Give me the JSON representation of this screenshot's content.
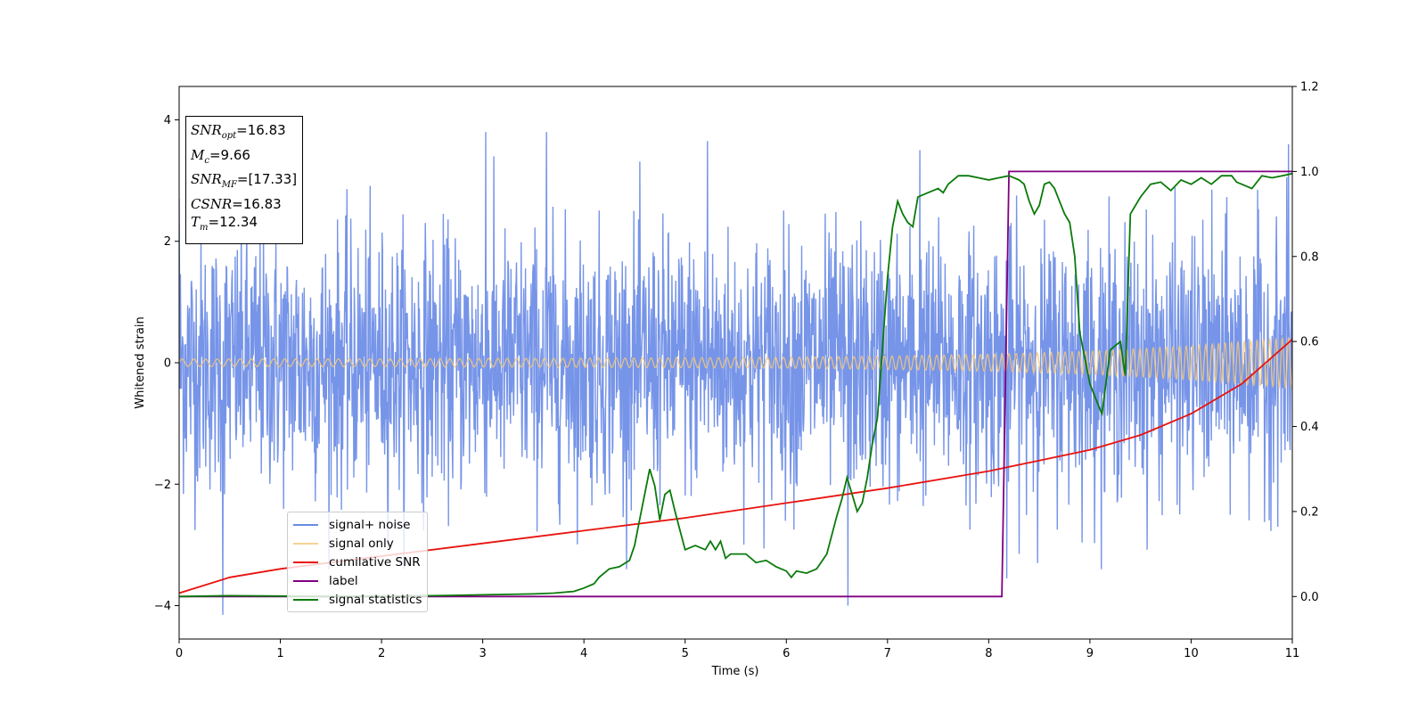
{
  "chart_data": {
    "type": "line",
    "title": "",
    "xlabel": "Time (s)",
    "ylabel": "Whitened strain",
    "xlim": [
      0,
      11
    ],
    "ylim": [
      -4.55,
      4.55
    ],
    "y2lim": [
      -0.1,
      1.2
    ],
    "xticks": [
      "0",
      "1",
      "2",
      "3",
      "4",
      "5",
      "6",
      "7",
      "8",
      "9",
      "10",
      "11"
    ],
    "yticks_left": [
      "−4",
      "−2",
      "0",
      "2",
      "4"
    ],
    "yticks_right": [
      "0.0",
      "0.2",
      "0.4",
      "0.6",
      "0.8",
      "1.0",
      "1.2"
    ],
    "grid": false,
    "legend_position": "lower-left",
    "series": [
      {
        "name": "signal+ noise",
        "color": "#6a8be6",
        "axis": "left",
        "note_style": "noise around zero, std about 1, peaks about ±3.8",
        "x": [
          0,
          0.43,
          3.03,
          3.63,
          5.22,
          6.61,
          7.32,
          8.18,
          10.96
        ],
        "values": [
          2.7,
          -4.15,
          3.8,
          3.8,
          3.65,
          -4.0,
          3.5,
          -3.55,
          3.6
        ]
      },
      {
        "name": "signal only",
        "color": "#f5c87a",
        "axis": "left",
        "envelope_x": [
          0,
          2,
          4,
          6,
          7,
          8,
          9,
          10,
          11
        ],
        "envelope_amplitude": [
          0.06,
          0.065,
          0.075,
          0.09,
          0.11,
          0.14,
          0.19,
          0.28,
          0.42
        ]
      },
      {
        "name": "cumilative SNR",
        "color": "#e8130e",
        "axis": "right",
        "x": [
          0,
          0.5,
          1,
          2,
          3,
          4,
          5,
          6,
          7,
          8,
          8.5,
          9,
          9.5,
          10,
          10.5,
          11
        ],
        "values": [
          0.008,
          0.045,
          0.065,
          0.095,
          0.125,
          0.155,
          0.185,
          0.22,
          0.255,
          0.295,
          0.32,
          0.345,
          0.38,
          0.43,
          0.5,
          0.605
        ]
      },
      {
        "name": "label",
        "color": "#800080",
        "axis": "right",
        "x": [
          0,
          8.13,
          8.2,
          11
        ],
        "values": [
          0,
          0,
          1,
          1
        ]
      },
      {
        "name": "signal statistics",
        "color": "#0a7a0a",
        "axis": "right",
        "x": [
          0,
          0.5,
          1,
          1.5,
          2,
          2.5,
          3,
          3.5,
          3.7,
          3.9,
          4.0,
          4.1,
          4.15,
          4.25,
          4.35,
          4.45,
          4.5,
          4.55,
          4.6,
          4.65,
          4.7,
          4.75,
          4.8,
          4.85,
          4.9,
          5.0,
          5.1,
          5.2,
          5.25,
          5.3,
          5.35,
          5.4,
          5.45,
          5.5,
          5.6,
          5.7,
          5.8,
          5.9,
          6.0,
          6.05,
          6.1,
          6.2,
          6.3,
          6.4,
          6.5,
          6.55,
          6.6,
          6.65,
          6.7,
          6.75,
          6.8,
          6.85,
          6.9,
          7.0,
          7.05,
          7.1,
          7.15,
          7.2,
          7.25,
          7.3,
          7.4,
          7.5,
          7.55,
          7.6,
          7.7,
          7.8,
          7.9,
          8.0,
          8.1,
          8.2,
          8.3,
          8.35,
          8.4,
          8.45,
          8.5,
          8.55,
          8.6,
          8.65,
          8.7,
          8.75,
          8.8,
          8.85,
          8.9,
          9.0,
          9.1,
          9.12,
          9.2,
          9.3,
          9.35,
          9.4,
          9.5,
          9.6,
          9.7,
          9.8,
          9.9,
          10.0,
          10.1,
          10.2,
          10.3,
          10.4,
          10.45,
          10.5,
          10.6,
          10.7,
          10.8,
          10.9,
          11.0
        ],
        "values": [
          0.0,
          0.002,
          0.001,
          0.0,
          0.001,
          0.002,
          0.004,
          0.006,
          0.008,
          0.012,
          0.02,
          0.03,
          0.045,
          0.065,
          0.07,
          0.085,
          0.12,
          0.18,
          0.24,
          0.3,
          0.26,
          0.18,
          0.24,
          0.25,
          0.2,
          0.11,
          0.12,
          0.11,
          0.13,
          0.11,
          0.13,
          0.09,
          0.1,
          0.1,
          0.1,
          0.08,
          0.085,
          0.07,
          0.06,
          0.045,
          0.06,
          0.055,
          0.065,
          0.1,
          0.19,
          0.23,
          0.28,
          0.24,
          0.2,
          0.22,
          0.28,
          0.36,
          0.42,
          0.75,
          0.87,
          0.93,
          0.9,
          0.88,
          0.87,
          0.94,
          0.95,
          0.96,
          0.95,
          0.97,
          0.99,
          0.99,
          0.985,
          0.98,
          0.985,
          0.99,
          0.98,
          0.97,
          0.93,
          0.9,
          0.92,
          0.97,
          0.975,
          0.96,
          0.93,
          0.9,
          0.88,
          0.8,
          0.62,
          0.5,
          0.44,
          0.43,
          0.58,
          0.6,
          0.52,
          0.9,
          0.94,
          0.97,
          0.975,
          0.955,
          0.98,
          0.97,
          0.985,
          0.97,
          0.99,
          0.99,
          0.975,
          0.97,
          0.96,
          0.99,
          0.985,
          0.99,
          0.995
        ]
      }
    ]
  },
  "info_box": {
    "snr_opt": {
      "sym": "SNR",
      "sub": "opt",
      "value": "=16.83"
    },
    "mc": {
      "sym": "M",
      "sub": "c",
      "value": "=9.66"
    },
    "snr_mf": {
      "sym": "SNR",
      "sub": "MF",
      "value": "=[17.33]"
    },
    "csnr": {
      "sym": "CSNR",
      "value": "=16.83"
    },
    "tm": {
      "sym": "T",
      "sub": "m",
      "value": "=12.34"
    }
  }
}
